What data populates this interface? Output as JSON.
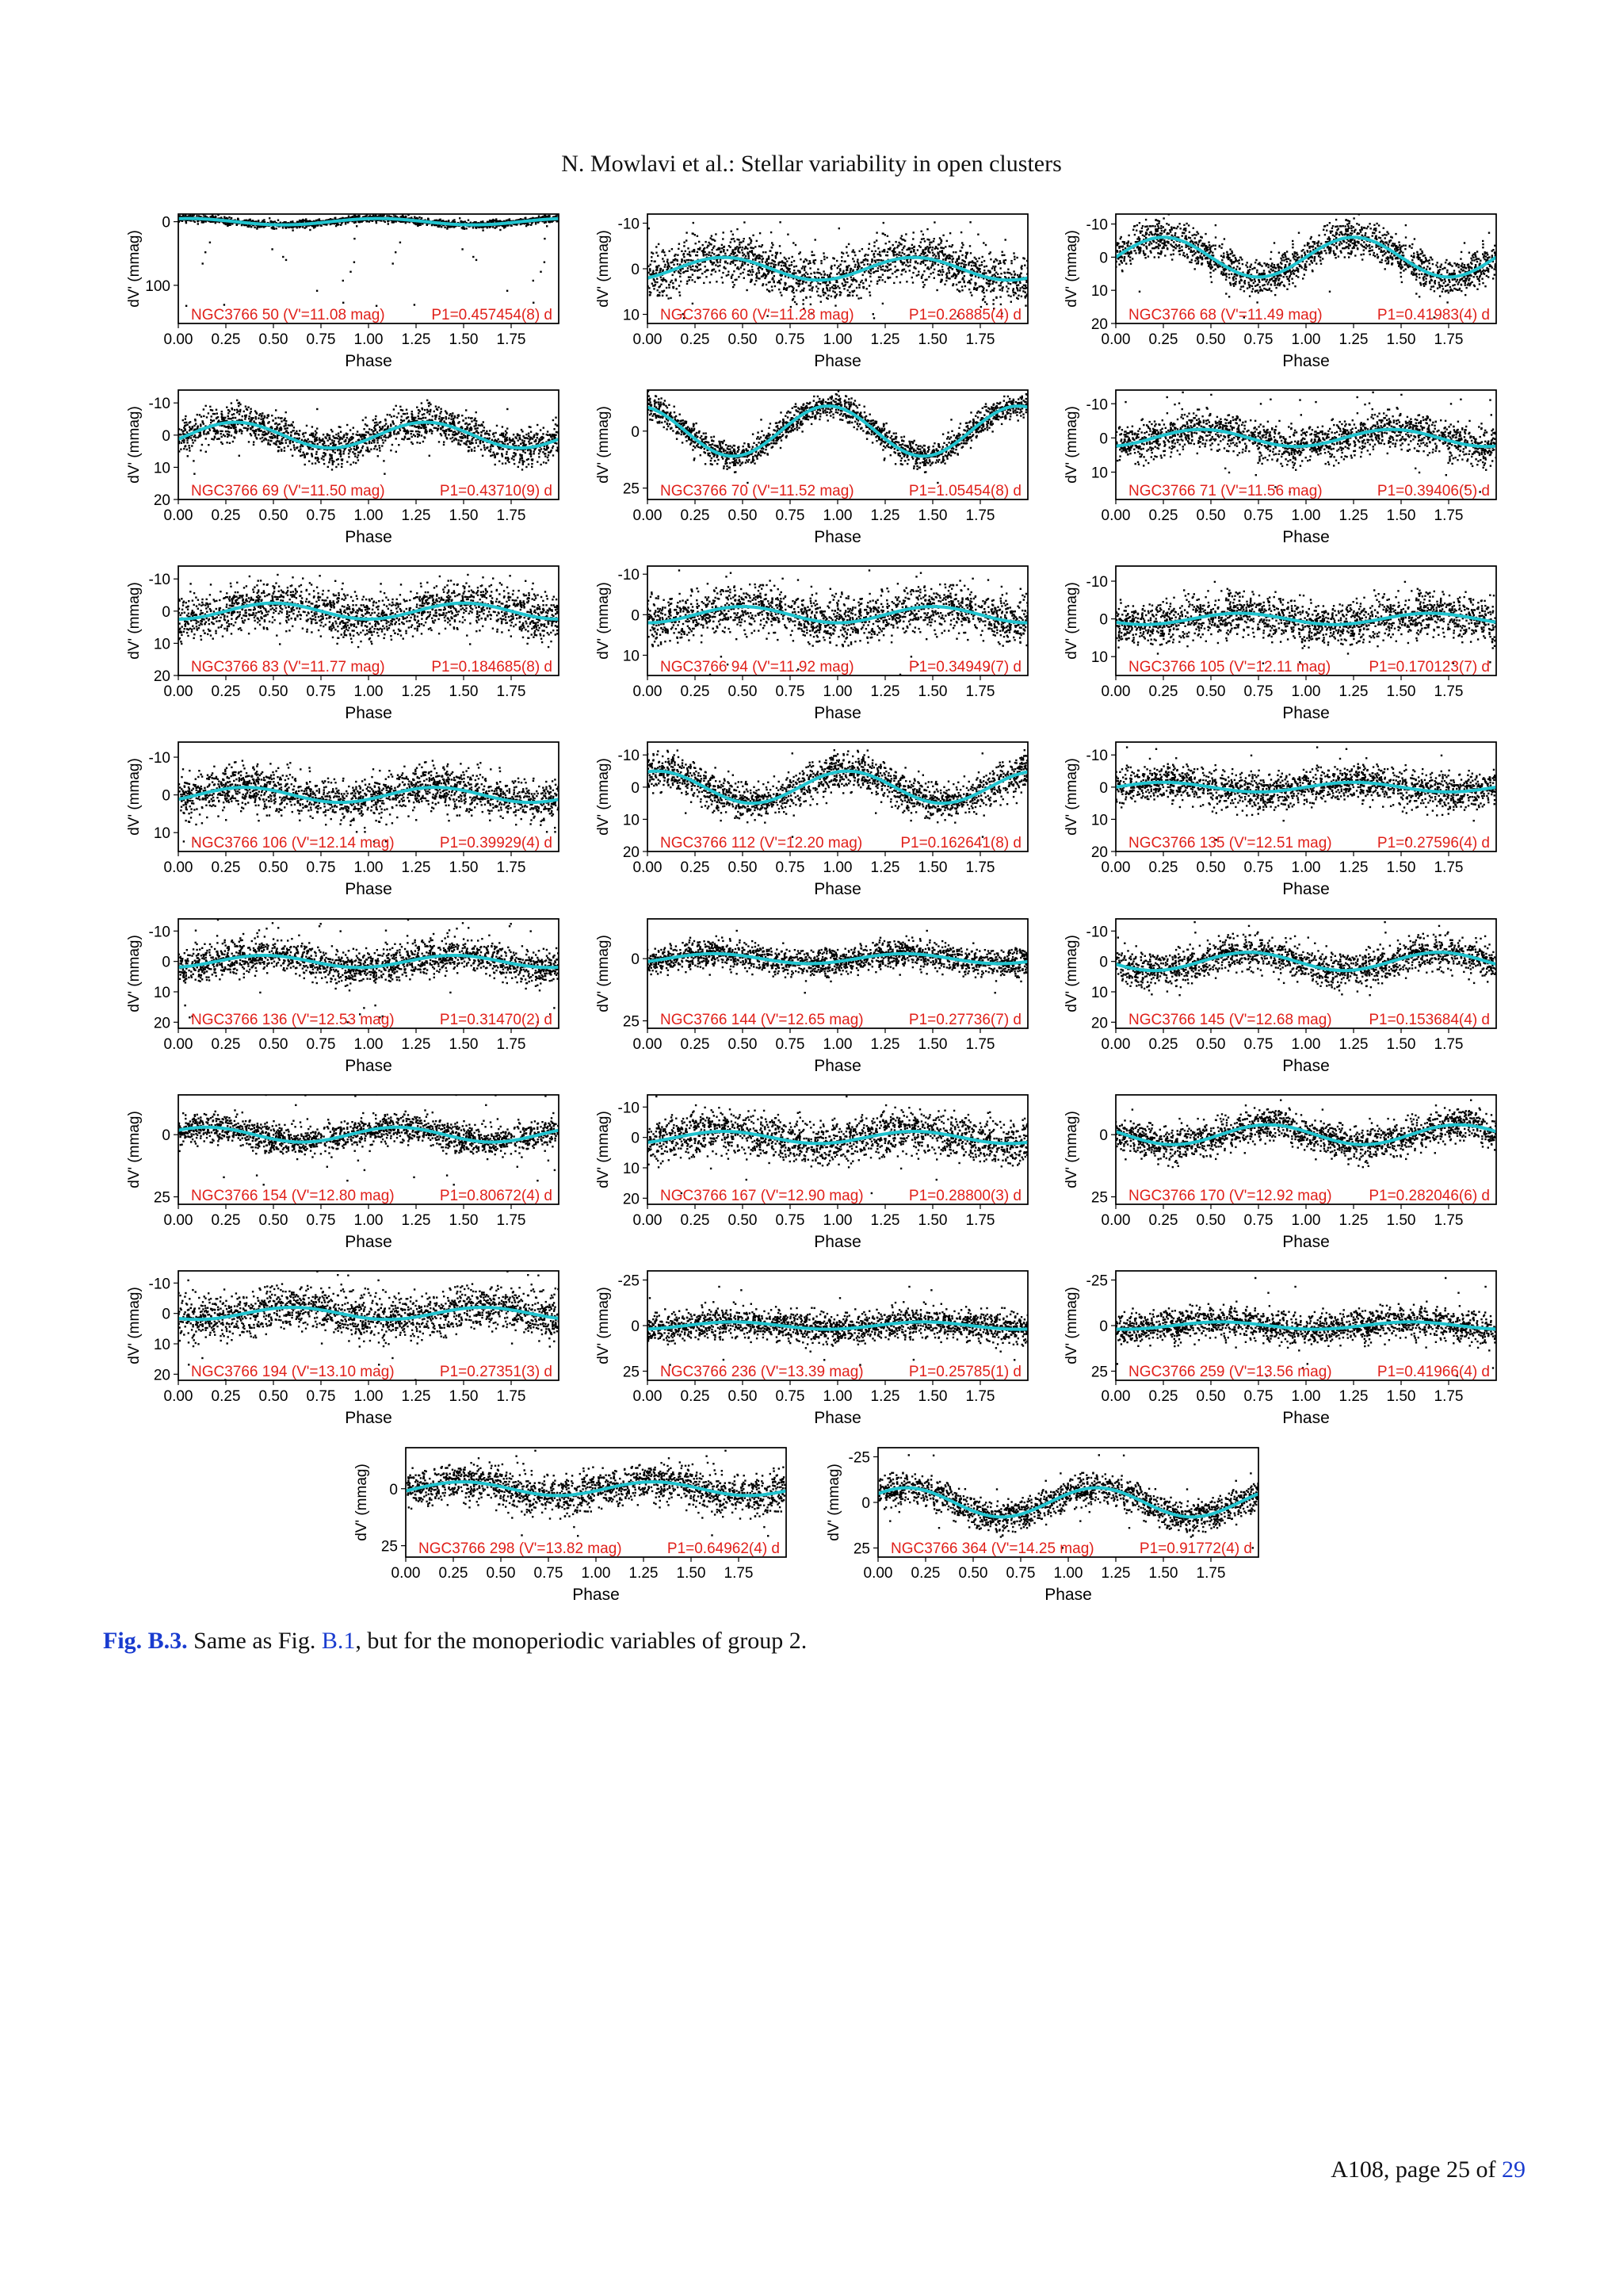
{
  "header": {
    "running_head": "N. Mowlavi et al.: Stellar variability in open clusters"
  },
  "figure": {
    "caption_label": "Fig. B.3.",
    "caption_text_before": " Same as Fig. ",
    "caption_ref": "B.1",
    "caption_text_after": ", but for the monoperiodic variables of group 2.",
    "colors": {
      "data_points": "#000000",
      "fit_curve": "#22c4cf",
      "panel_label": "#e0201a"
    }
  },
  "footer": {
    "page_prefix": "A108, page 25 of ",
    "page_total": "29"
  },
  "chart_data": [
    {
      "type": "scatter",
      "star": "NGC3766 50 (V'=11.08 mag)",
      "period": "P1=0.457454(8) d",
      "xlabel": "Phase",
      "ylabel": "dV' (mmag)",
      "x_ticks": [
        "0.00",
        "0.25",
        "0.50",
        "0.75",
        "1.00",
        "1.25",
        "1.50",
        "1.75"
      ],
      "xlim": [
        0,
        2
      ],
      "y_ticks": [
        0,
        100
      ],
      "ylim": [
        -12,
        160
      ],
      "fit_amplitude": 5,
      "fit_phase0": 0.3,
      "fit_harmonics": 1,
      "noise": 4,
      "outliers": "dips"
    },
    {
      "type": "scatter",
      "star": "NGC3766 60 (V'=11.28 mag)",
      "period": "P1=0.26885(4) d",
      "xlabel": "Phase",
      "ylabel": "dV' (mmag)",
      "x_ticks": [
        "0.00",
        "0.25",
        "0.50",
        "0.75",
        "1.00",
        "1.25",
        "1.50",
        "1.75"
      ],
      "xlim": [
        0,
        2
      ],
      "y_ticks": [
        -10,
        0,
        10
      ],
      "ylim": [
        -12,
        12
      ],
      "fit_amplitude": 2.5,
      "fit_phase0": 0.65,
      "fit_harmonics": 1,
      "noise": 4,
      "outliers": "none"
    },
    {
      "type": "scatter",
      "star": "NGC3766 68 (V'=11.49 mag)",
      "period": "P1=0.41983(4) d",
      "xlabel": "Phase",
      "ylabel": "dV' (mmag)",
      "x_ticks": [
        "0.00",
        "0.25",
        "0.50",
        "0.75",
        "1.00",
        "1.25",
        "1.50",
        "1.75"
      ],
      "xlim": [
        0,
        2
      ],
      "y_ticks": [
        -10,
        0,
        10,
        20
      ],
      "ylim": [
        -13,
        20
      ],
      "fit_amplitude": 6,
      "fit_phase0": 0.5,
      "fit_harmonics": 1,
      "noise": 4,
      "outliers": "none"
    },
    {
      "type": "scatter",
      "star": "NGC3766 69 (V'=11.50 mag)",
      "period": "P1=0.43710(9) d",
      "xlabel": "Phase",
      "ylabel": "dV' (mmag)",
      "x_ticks": [
        "0.00",
        "0.25",
        "0.50",
        "0.75",
        "1.00",
        "1.25",
        "1.50",
        "1.75"
      ],
      "xlim": [
        0,
        2
      ],
      "y_ticks": [
        -10,
        0,
        10,
        20
      ],
      "ylim": [
        -14,
        20
      ],
      "fit_amplitude": 4,
      "fit_phase0": 0.55,
      "fit_harmonics": 1,
      "noise": 4,
      "outliers": "none"
    },
    {
      "type": "scatter",
      "star": "NGC3766 70 (V'=11.52 mag)",
      "period": "P1=1.05454(8) d",
      "xlabel": "Phase",
      "ylabel": "dV' (mmag)",
      "x_ticks": [
        "0.00",
        "0.25",
        "0.50",
        "0.75",
        "1.00",
        "1.25",
        "1.50",
        "1.75"
      ],
      "xlim": [
        0,
        2
      ],
      "y_ticks": [
        0,
        25
      ],
      "ylim": [
        -18,
        30
      ],
      "fit_amplitude": 11,
      "fit_phase0": 0.2,
      "fit_harmonics": 1,
      "noise": 4,
      "outliers": "none"
    },
    {
      "type": "scatter",
      "star": "NGC3766 71 (V'=11.56 mag)",
      "period": "P1=0.39406(5) d",
      "xlabel": "Phase",
      "ylabel": "dV' (mmag)",
      "x_ticks": [
        "0.00",
        "0.25",
        "0.50",
        "0.75",
        "1.00",
        "1.25",
        "1.50",
        "1.75"
      ],
      "xlim": [
        0,
        2
      ],
      "y_ticks": [
        -10,
        0,
        10
      ],
      "ylim": [
        -14,
        18
      ],
      "fit_amplitude": 2.5,
      "fit_phase0": 0.7,
      "fit_harmonics": 1,
      "noise": 4,
      "outliers": "none"
    },
    {
      "type": "scatter",
      "star": "NGC3766 83 (V'=11.77 mag)",
      "period": "P1=0.184685(8) d",
      "xlabel": "Phase",
      "ylabel": "dV' (mmag)",
      "x_ticks": [
        "0.00",
        "0.25",
        "0.50",
        "0.75",
        "1.00",
        "1.25",
        "1.50",
        "1.75"
      ],
      "xlim": [
        0,
        2
      ],
      "y_ticks": [
        -10,
        0,
        10,
        20
      ],
      "ylim": [
        -14,
        20
      ],
      "fit_amplitude": 2.5,
      "fit_phase0": 0.75,
      "fit_harmonics": 1,
      "noise": 5,
      "outliers": "none"
    },
    {
      "type": "scatter",
      "star": "NGC3766 94 (V'=11.92 mag)",
      "period": "P1=0.34949(7) d",
      "xlabel": "Phase",
      "ylabel": "dV' (mmag)",
      "x_ticks": [
        "0.00",
        "0.25",
        "0.50",
        "0.75",
        "1.00",
        "1.25",
        "1.50",
        "1.75"
      ],
      "xlim": [
        0,
        2
      ],
      "y_ticks": [
        -10,
        0,
        10
      ],
      "ylim": [
        -12,
        15
      ],
      "fit_amplitude": 2,
      "fit_phase0": 0.75,
      "fit_harmonics": 1,
      "noise": 4,
      "outliers": "none"
    },
    {
      "type": "scatter",
      "star": "NGC3766 105 (V'=12.11 mag)",
      "period": "P1=0.170123(7) d",
      "xlabel": "Phase",
      "ylabel": "dV' (mmag)",
      "x_ticks": [
        "0.00",
        "0.25",
        "0.50",
        "0.75",
        "1.00",
        "1.25",
        "1.50",
        "1.75"
      ],
      "xlim": [
        0,
        2
      ],
      "y_ticks": [
        -10,
        0,
        10
      ],
      "ylim": [
        -14,
        15
      ],
      "fit_amplitude": 1.5,
      "fit_phase0": 0.9,
      "fit_harmonics": 1,
      "noise": 4,
      "outliers": "none"
    },
    {
      "type": "scatter",
      "star": "NGC3766 106 (V'=12.14 mag)",
      "period": "P1=0.39929(4) d",
      "xlabel": "Phase",
      "ylabel": "dV' (mmag)",
      "x_ticks": [
        "0.00",
        "0.25",
        "0.50",
        "0.75",
        "1.00",
        "1.25",
        "1.50",
        "1.75"
      ],
      "xlim": [
        0,
        2
      ],
      "y_ticks": [
        -10,
        0,
        10
      ],
      "ylim": [
        -14,
        15
      ],
      "fit_amplitude": 2,
      "fit_phase0": 0.6,
      "fit_harmonics": 1,
      "noise": 4,
      "outliers": "none"
    },
    {
      "type": "scatter",
      "star": "NGC3766 112 (V'=12.20 mag)",
      "period": "P1=0.162641(8) d",
      "xlabel": "Phase",
      "ylabel": "dV' (mmag)",
      "x_ticks": [
        "0.00",
        "0.25",
        "0.50",
        "0.75",
        "1.00",
        "1.25",
        "1.50",
        "1.75"
      ],
      "xlim": [
        0,
        2
      ],
      "y_ticks": [
        -10,
        0,
        10,
        20
      ],
      "ylim": [
        -14,
        20
      ],
      "fit_amplitude": 5,
      "fit_phase0": 0.3,
      "fit_harmonics": 1,
      "noise": 4,
      "outliers": "none"
    },
    {
      "type": "scatter",
      "star": "NGC3766 135 (V'=12.51 mag)",
      "period": "P1=0.27596(4) d",
      "xlabel": "Phase",
      "ylabel": "dV' (mmag)",
      "x_ticks": [
        "0.00",
        "0.25",
        "0.50",
        "0.75",
        "1.00",
        "1.25",
        "1.50",
        "1.75"
      ],
      "xlim": [
        0,
        2
      ],
      "y_ticks": [
        -10,
        0,
        10,
        20
      ],
      "ylim": [
        -14,
        20
      ],
      "fit_amplitude": 1.5,
      "fit_phase0": 0.5,
      "fit_harmonics": 1,
      "noise": 4,
      "outliers": "none"
    },
    {
      "type": "scatter",
      "star": "NGC3766 136 (V'=12.53 mag)",
      "period": "P1=0.31470(2) d",
      "xlabel": "Phase",
      "ylabel": "dV' (mmag)",
      "x_ticks": [
        "0.00",
        "0.25",
        "0.50",
        "0.75",
        "1.00",
        "1.25",
        "1.50",
        "1.75"
      ],
      "xlim": [
        0,
        2
      ],
      "y_ticks": [
        -10,
        0,
        10,
        20
      ],
      "ylim": [
        -14,
        22
      ],
      "fit_amplitude": 2,
      "fit_phase0": 0.7,
      "fit_harmonics": 1,
      "noise": 4,
      "outliers": "sparse"
    },
    {
      "type": "scatter",
      "star": "NGC3766 144 (V'=12.65 mag)",
      "period": "P1=0.27736(7) d",
      "xlabel": "Phase",
      "ylabel": "dV' (mmag)",
      "x_ticks": [
        "0.00",
        "0.25",
        "0.50",
        "0.75",
        "1.00",
        "1.25",
        "1.50",
        "1.75"
      ],
      "xlim": [
        0,
        2
      ],
      "y_ticks": [
        0,
        25
      ],
      "ylim": [
        -16,
        28
      ],
      "fit_amplitude": 2,
      "fit_phase0": 0.6,
      "fit_harmonics": 1,
      "noise": 4,
      "outliers": "none"
    },
    {
      "type": "scatter",
      "star": "NGC3766 145 (V'=12.68 mag)",
      "period": "P1=0.153684(4) d",
      "xlabel": "Phase",
      "ylabel": "dV' (mmag)",
      "x_ticks": [
        "0.00",
        "0.25",
        "0.50",
        "0.75",
        "1.00",
        "1.25",
        "1.50",
        "1.75"
      ],
      "xlim": [
        0,
        2
      ],
      "y_ticks": [
        -10,
        0,
        10,
        20
      ],
      "ylim": [
        -14,
        22
      ],
      "fit_amplitude": 3,
      "fit_phase0": 0.95,
      "fit_harmonics": 1,
      "noise": 4,
      "outliers": "none"
    },
    {
      "type": "scatter",
      "star": "NGC3766 154 (V'=12.80 mag)",
      "period": "P1=0.80672(4) d",
      "xlabel": "Phase",
      "ylabel": "dV' (mmag)",
      "x_ticks": [
        "0.00",
        "0.25",
        "0.50",
        "0.75",
        "1.00",
        "1.25",
        "1.50",
        "1.75"
      ],
      "xlim": [
        0,
        2
      ],
      "y_ticks": [
        0,
        25
      ],
      "ylim": [
        -16,
        28
      ],
      "fit_amplitude": 3,
      "fit_phase0": 0.4,
      "fit_harmonics": 1,
      "noise": 4,
      "outliers": "sparse"
    },
    {
      "type": "scatter",
      "star": "NGC3766 167 (V'=12.90 mag)",
      "period": "P1=0.28800(3) d",
      "xlabel": "Phase",
      "ylabel": "dV' (mmag)",
      "x_ticks": [
        "0.00",
        "0.25",
        "0.50",
        "0.75",
        "1.00",
        "1.25",
        "1.50",
        "1.75"
      ],
      "xlim": [
        0,
        2
      ],
      "y_ticks": [
        -10,
        0,
        10,
        20
      ],
      "ylim": [
        -14,
        22
      ],
      "fit_amplitude": 2,
      "fit_phase0": 0.65,
      "fit_harmonics": 1,
      "noise": 5,
      "outliers": "none"
    },
    {
      "type": "scatter",
      "star": "NGC3766 170 (V'=12.92 mag)",
      "period": "P1=0.282046(6) d",
      "xlabel": "Phase",
      "ylabel": "dV' (mmag)",
      "x_ticks": [
        "0.00",
        "0.25",
        "0.50",
        "0.75",
        "1.00",
        "1.25",
        "1.50",
        "1.75"
      ],
      "xlim": [
        0,
        2
      ],
      "y_ticks": [
        0,
        25
      ],
      "ylim": [
        -16,
        28
      ],
      "fit_amplitude": 4,
      "fit_phase0": 0.05,
      "fit_harmonics": 1,
      "noise": 5,
      "outliers": "none"
    },
    {
      "type": "scatter",
      "star": "NGC3766 194 (V'=13.10 mag)",
      "period": "P1=0.27351(3) d",
      "xlabel": "Phase",
      "ylabel": "dV' (mmag)",
      "x_ticks": [
        "0.00",
        "0.25",
        "0.50",
        "0.75",
        "1.00",
        "1.25",
        "1.50",
        "1.75"
      ],
      "xlim": [
        0,
        2
      ],
      "y_ticks": [
        -10,
        0,
        10,
        20
      ],
      "ylim": [
        -14,
        22
      ],
      "fit_amplitude": 2,
      "fit_phase0": 0.85,
      "fit_harmonics": 1,
      "noise": 5,
      "outliers": "none"
    },
    {
      "type": "scatter",
      "star": "NGC3766 236 (V'=13.39 mag)",
      "period": "P1=0.25785(1) d",
      "xlabel": "Phase",
      "ylabel": "dV' (mmag)",
      "x_ticks": [
        "0.00",
        "0.25",
        "0.50",
        "0.75",
        "1.00",
        "1.25",
        "1.50",
        "1.75"
      ],
      "xlim": [
        0,
        2
      ],
      "y_ticks": [
        -25,
        0,
        25
      ],
      "ylim": [
        -30,
        30
      ],
      "fit_amplitude": 2,
      "fit_phase0": 0.7,
      "fit_harmonics": 1,
      "noise": 6,
      "outliers": "none"
    },
    {
      "type": "scatter",
      "star": "NGC3766 259 (V'=13.56 mag)",
      "period": "P1=0.41966(4) d",
      "xlabel": "Phase",
      "ylabel": "dV' (mmag)",
      "x_ticks": [
        "0.00",
        "0.25",
        "0.50",
        "0.75",
        "1.00",
        "1.25",
        "1.50",
        "1.75"
      ],
      "xlim": [
        0,
        2
      ],
      "y_ticks": [
        -25,
        0,
        25
      ],
      "ylim": [
        -30,
        30
      ],
      "fit_amplitude": 2,
      "fit_phase0": 0.8,
      "fit_harmonics": 1,
      "noise": 6,
      "outliers": "none"
    },
    {
      "type": "scatter",
      "star": "NGC3766 298 (V'=13.82 mag)",
      "period": "P1=0.64962(4) d",
      "xlabel": "Phase",
      "ylabel": "dV' (mmag)",
      "x_ticks": [
        "0.00",
        "0.25",
        "0.50",
        "0.75",
        "1.00",
        "1.25",
        "1.50",
        "1.75"
      ],
      "xlim": [
        0,
        2
      ],
      "y_ticks": [
        0,
        25
      ],
      "ylim": [
        -18,
        30
      ],
      "fit_amplitude": 3,
      "fit_phase0": 0.55,
      "fit_harmonics": 1,
      "noise": 6,
      "outliers": "none"
    },
    {
      "type": "scatter",
      "star": "NGC3766 364 (V'=14.25 mag)",
      "period": "P1=0.91772(4) d",
      "xlabel": "Phase",
      "ylabel": "dV' (mmag)",
      "x_ticks": [
        "0.00",
        "0.25",
        "0.50",
        "0.75",
        "1.00",
        "1.25",
        "1.50",
        "1.75"
      ],
      "xlim": [
        0,
        2
      ],
      "y_ticks": [
        -25,
        0,
        25
      ],
      "ylim": [
        -30,
        30
      ],
      "fit_amplitude": 8,
      "fit_phase0": 0.4,
      "fit_harmonics": 1,
      "noise": 6,
      "outliers": "none"
    }
  ]
}
